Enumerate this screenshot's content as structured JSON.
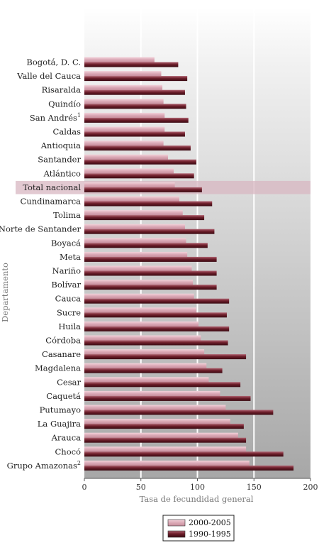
{
  "chart_data": {
    "type": "bar",
    "orientation": "horizontal",
    "xlabel": "Tasa de fecundidad general",
    "ylabel": "Departamento",
    "xlim": [
      0,
      200
    ],
    "xticks": [
      0,
      50,
      100,
      150,
      200
    ],
    "grid": true,
    "legend_position": "bottom-center",
    "highlight_category": "Total nacional",
    "categories": [
      {
        "text": "Bogotá, D. C.",
        "sup": ""
      },
      {
        "text": "Valle del Cauca",
        "sup": ""
      },
      {
        "text": "Risaralda",
        "sup": ""
      },
      {
        "text": "Quindío",
        "sup": ""
      },
      {
        "text": "San Andrés",
        "sup": "1"
      },
      {
        "text": "Caldas",
        "sup": ""
      },
      {
        "text": "Antioquia",
        "sup": ""
      },
      {
        "text": "Santander",
        "sup": ""
      },
      {
        "text": "Atlántico",
        "sup": ""
      },
      {
        "text": "Total nacional",
        "sup": ""
      },
      {
        "text": "Cundinamarca",
        "sup": ""
      },
      {
        "text": "Tolima",
        "sup": ""
      },
      {
        "text": "Norte de Santander",
        "sup": ""
      },
      {
        "text": "Boyacá",
        "sup": ""
      },
      {
        "text": "Meta",
        "sup": ""
      },
      {
        "text": "Nariño",
        "sup": ""
      },
      {
        "text": "Bolívar",
        "sup": ""
      },
      {
        "text": "Cauca",
        "sup": ""
      },
      {
        "text": "Sucre",
        "sup": ""
      },
      {
        "text": "Huila",
        "sup": ""
      },
      {
        "text": "Córdoba",
        "sup": ""
      },
      {
        "text": "Casanare",
        "sup": ""
      },
      {
        "text": "Magdalena",
        "sup": ""
      },
      {
        "text": "Cesar",
        "sup": ""
      },
      {
        "text": "Caquetá",
        "sup": ""
      },
      {
        "text": "Putumayo",
        "sup": ""
      },
      {
        "text": "La Guajira",
        "sup": ""
      },
      {
        "text": "Arauca",
        "sup": ""
      },
      {
        "text": "Chocó",
        "sup": ""
      },
      {
        "text": "Grupo Amazonas",
        "sup": "2"
      }
    ],
    "series": [
      {
        "name": "2000-2005",
        "color": "#dba9b6",
        "values": [
          62,
          68,
          69,
          70,
          71,
          71,
          70,
          74,
          79,
          80,
          84,
          87,
          89,
          90,
          91,
          95,
          96,
          97,
          99,
          101,
          103,
          106,
          108,
          110,
          120,
          125,
          129,
          136,
          143,
          146
        ]
      },
      {
        "name": "1990-1995",
        "color": "#6e1f2b",
        "values": [
          83,
          91,
          89,
          90,
          92,
          89,
          94,
          99,
          97,
          104,
          113,
          106,
          115,
          109,
          117,
          117,
          117,
          128,
          126,
          128,
          127,
          143,
          122,
          138,
          147,
          167,
          141,
          143,
          176,
          185
        ]
      }
    ]
  }
}
